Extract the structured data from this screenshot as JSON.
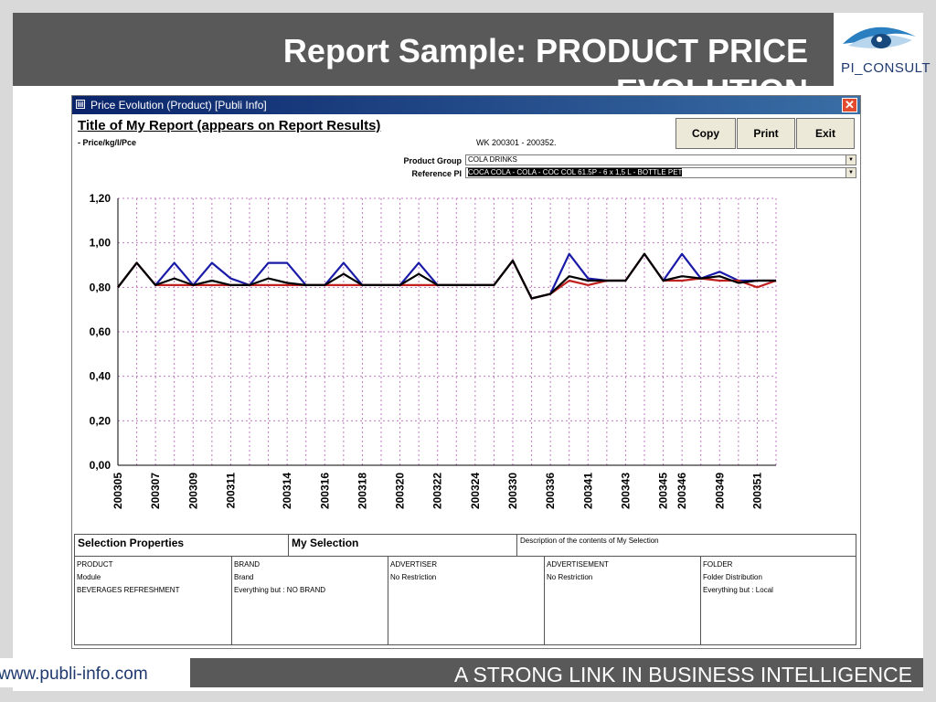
{
  "slide": {
    "title": "Report Sample: PRODUCT PRICE EVOLUTION",
    "logo_text": "PI_CONSULT",
    "footer_url": "www.publi-info.com",
    "footer_tagline": "A STRONG LINK IN BUSINESS INTELLIGENCE"
  },
  "window": {
    "title": "Price Evolution (Product) [Publi Info]",
    "close_glyph": "✕",
    "report_title": "Title of My Report (appears on Report Results)",
    "report_subtitle": "- Price/kg/l/Pce",
    "week_range": "WK 200301 - 200352.",
    "buttons": {
      "copy": "Copy",
      "print": "Print",
      "exit": "Exit"
    },
    "product_group_label": "Product Group",
    "product_group_value": "COLA DRINKS",
    "reference_label": "Reference PI",
    "reference_value": "COCA COLA - COLA - COC COL 61.5P - 6 x 1,5 L - BOTTLE PET"
  },
  "chart_data": {
    "type": "line",
    "ylim": [
      0,
      1.2
    ],
    "y_ticks": [
      "0,00",
      "0,20",
      "0,40",
      "0,60",
      "0,80",
      "1,00",
      "1,20"
    ],
    "y_tick_values": [
      0,
      0.2,
      0.4,
      0.6,
      0.8,
      1.0,
      1.2
    ],
    "x": [
      "200305",
      "200306",
      "200307",
      "200308",
      "200309",
      "200310",
      "200311",
      "200312",
      "200313",
      "200314",
      "200315",
      "200316",
      "200317",
      "200318",
      "200319",
      "200320",
      "200321",
      "200322",
      "200323",
      "200324",
      "200325",
      "200330",
      "200331",
      "200336",
      "200340",
      "200341",
      "200342",
      "200343",
      "200344",
      "200345",
      "200346",
      "200347",
      "200349",
      "200350",
      "200351",
      "200352"
    ],
    "x_tick_labels": [
      "200305",
      "200307",
      "200309",
      "200311",
      "200314",
      "200316",
      "200318",
      "200320",
      "200322",
      "200324",
      "200330",
      "200336",
      "200341",
      "200343",
      "200345",
      "200346",
      "200349",
      "200351"
    ],
    "grid": true,
    "series": [
      {
        "color": "#1a1aa8",
        "values": [
          0.8,
          0.91,
          0.81,
          0.91,
          0.81,
          0.91,
          0.84,
          0.81,
          0.91,
          0.91,
          0.81,
          0.81,
          0.91,
          0.81,
          0.81,
          0.81,
          0.91,
          0.81,
          0.81,
          0.81,
          0.81,
          0.92,
          0.75,
          0.77,
          0.95,
          0.84,
          0.83,
          0.83,
          0.95,
          0.83,
          0.95,
          0.84,
          0.87,
          0.83,
          0.83,
          0.83
        ]
      },
      {
        "color": "#c0201e",
        "values": [
          0.8,
          0.91,
          0.81,
          0.81,
          0.81,
          0.81,
          0.81,
          0.81,
          0.81,
          0.81,
          0.81,
          0.81,
          0.81,
          0.81,
          0.81,
          0.81,
          0.81,
          0.81,
          0.81,
          0.81,
          0.81,
          0.92,
          0.75,
          0.77,
          0.83,
          0.81,
          0.83,
          0.83,
          0.95,
          0.83,
          0.83,
          0.84,
          0.83,
          0.83,
          0.8,
          0.83
        ]
      },
      {
        "color": "#000000",
        "values": [
          0.8,
          0.91,
          0.81,
          0.84,
          0.81,
          0.83,
          0.81,
          0.81,
          0.84,
          0.82,
          0.81,
          0.81,
          0.86,
          0.81,
          0.81,
          0.81,
          0.86,
          0.81,
          0.81,
          0.81,
          0.81,
          0.92,
          0.75,
          0.77,
          0.85,
          0.83,
          0.83,
          0.83,
          0.95,
          0.83,
          0.85,
          0.84,
          0.85,
          0.82,
          0.83,
          0.83
        ]
      }
    ]
  },
  "selection": {
    "head_properties": "Selection Properties",
    "head_my_selection": "My Selection",
    "head_description": "Description of the contents of My Selection",
    "columns": [
      {
        "l1": "PRODUCT",
        "l2": "Module",
        "l3": "BEVERAGES REFRESHMENT"
      },
      {
        "l1": "BRAND",
        "l2": "Brand",
        "l3": "Everything but :  NO BRAND"
      },
      {
        "l1": "ADVERTISER",
        "l2": "No Restriction",
        "l3": ""
      },
      {
        "l1": "ADVERTISEMENT",
        "l2": "No Restriction",
        "l3": ""
      },
      {
        "l1": "FOLDER",
        "l2": "Folder Distribution",
        "l3": "Everything but : Local"
      }
    ]
  }
}
